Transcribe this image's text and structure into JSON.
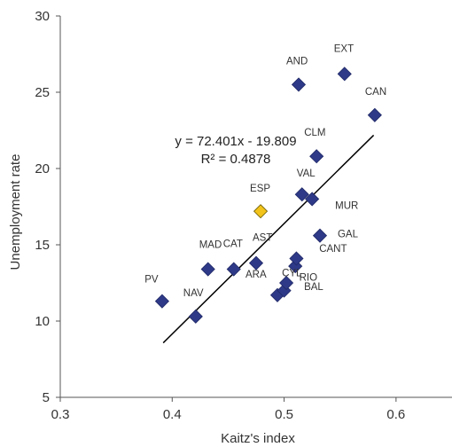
{
  "chart_data": {
    "type": "scatter",
    "xlabel": "Kaitz's index",
    "ylabel": "Unemployment rate",
    "xlim": [
      0.3,
      0.65
    ],
    "ylim": [
      5,
      30
    ],
    "xticks": [
      0.3,
      0.4,
      0.5,
      0.6
    ],
    "xtick_labels": [
      "0.3",
      "0.4",
      "0.5",
      "0.6"
    ],
    "yticks": [
      5,
      10,
      15,
      20,
      25,
      30
    ],
    "ytick_labels": [
      "5",
      "10",
      "15",
      "20",
      "25",
      "30"
    ],
    "grid": false,
    "points": [
      {
        "label": "PV",
        "x": 0.391,
        "y": 11.3,
        "highlight": false
      },
      {
        "label": "NAV",
        "x": 0.421,
        "y": 10.3,
        "highlight": false
      },
      {
        "label": "MAD",
        "x": 0.432,
        "y": 13.4,
        "highlight": false
      },
      {
        "label": "CAT",
        "x": 0.455,
        "y": 13.4,
        "highlight": false
      },
      {
        "label": "AST",
        "x": 0.475,
        "y": 13.8,
        "highlight": false
      },
      {
        "label": "ESP",
        "x": 0.479,
        "y": 17.2,
        "highlight": true
      },
      {
        "label": "ARA",
        "x": 0.494,
        "y": 11.7,
        "highlight": false
      },
      {
        "label": "RIO",
        "x": 0.5,
        "y": 12.0,
        "highlight": false
      },
      {
        "label": "BAL",
        "x": 0.502,
        "y": 12.5,
        "highlight": false
      },
      {
        "label": "CANT",
        "x": 0.51,
        "y": 13.6,
        "highlight": false
      },
      {
        "label": "CYL",
        "x": 0.511,
        "y": 14.1,
        "highlight": false
      },
      {
        "label": "AND",
        "x": 0.513,
        "y": 25.5,
        "highlight": false
      },
      {
        "label": "VAL",
        "x": 0.516,
        "y": 18.3,
        "highlight": false
      },
      {
        "label": "MUR",
        "x": 0.525,
        "y": 18.0,
        "highlight": false
      },
      {
        "label": "CLM",
        "x": 0.529,
        "y": 20.8,
        "highlight": false
      },
      {
        "label": "GAL",
        "x": 0.532,
        "y": 15.6,
        "highlight": false
      },
      {
        "label": "EXT",
        "x": 0.554,
        "y": 26.2,
        "highlight": false
      },
      {
        "label": "CAN",
        "x": 0.581,
        "y": 23.5,
        "highlight": false
      }
    ],
    "trendline": {
      "slope": 72.401,
      "intercept": -19.809,
      "x_range": [
        0.392,
        0.58
      ]
    },
    "annotations": {
      "equation": "y = 72.401x - 19.809",
      "r_squared": "R² = 0.4878"
    },
    "colors": {
      "points": "#2e3a87",
      "highlight": "#f2c31b",
      "line": "#000000",
      "axis": "#555555"
    }
  }
}
